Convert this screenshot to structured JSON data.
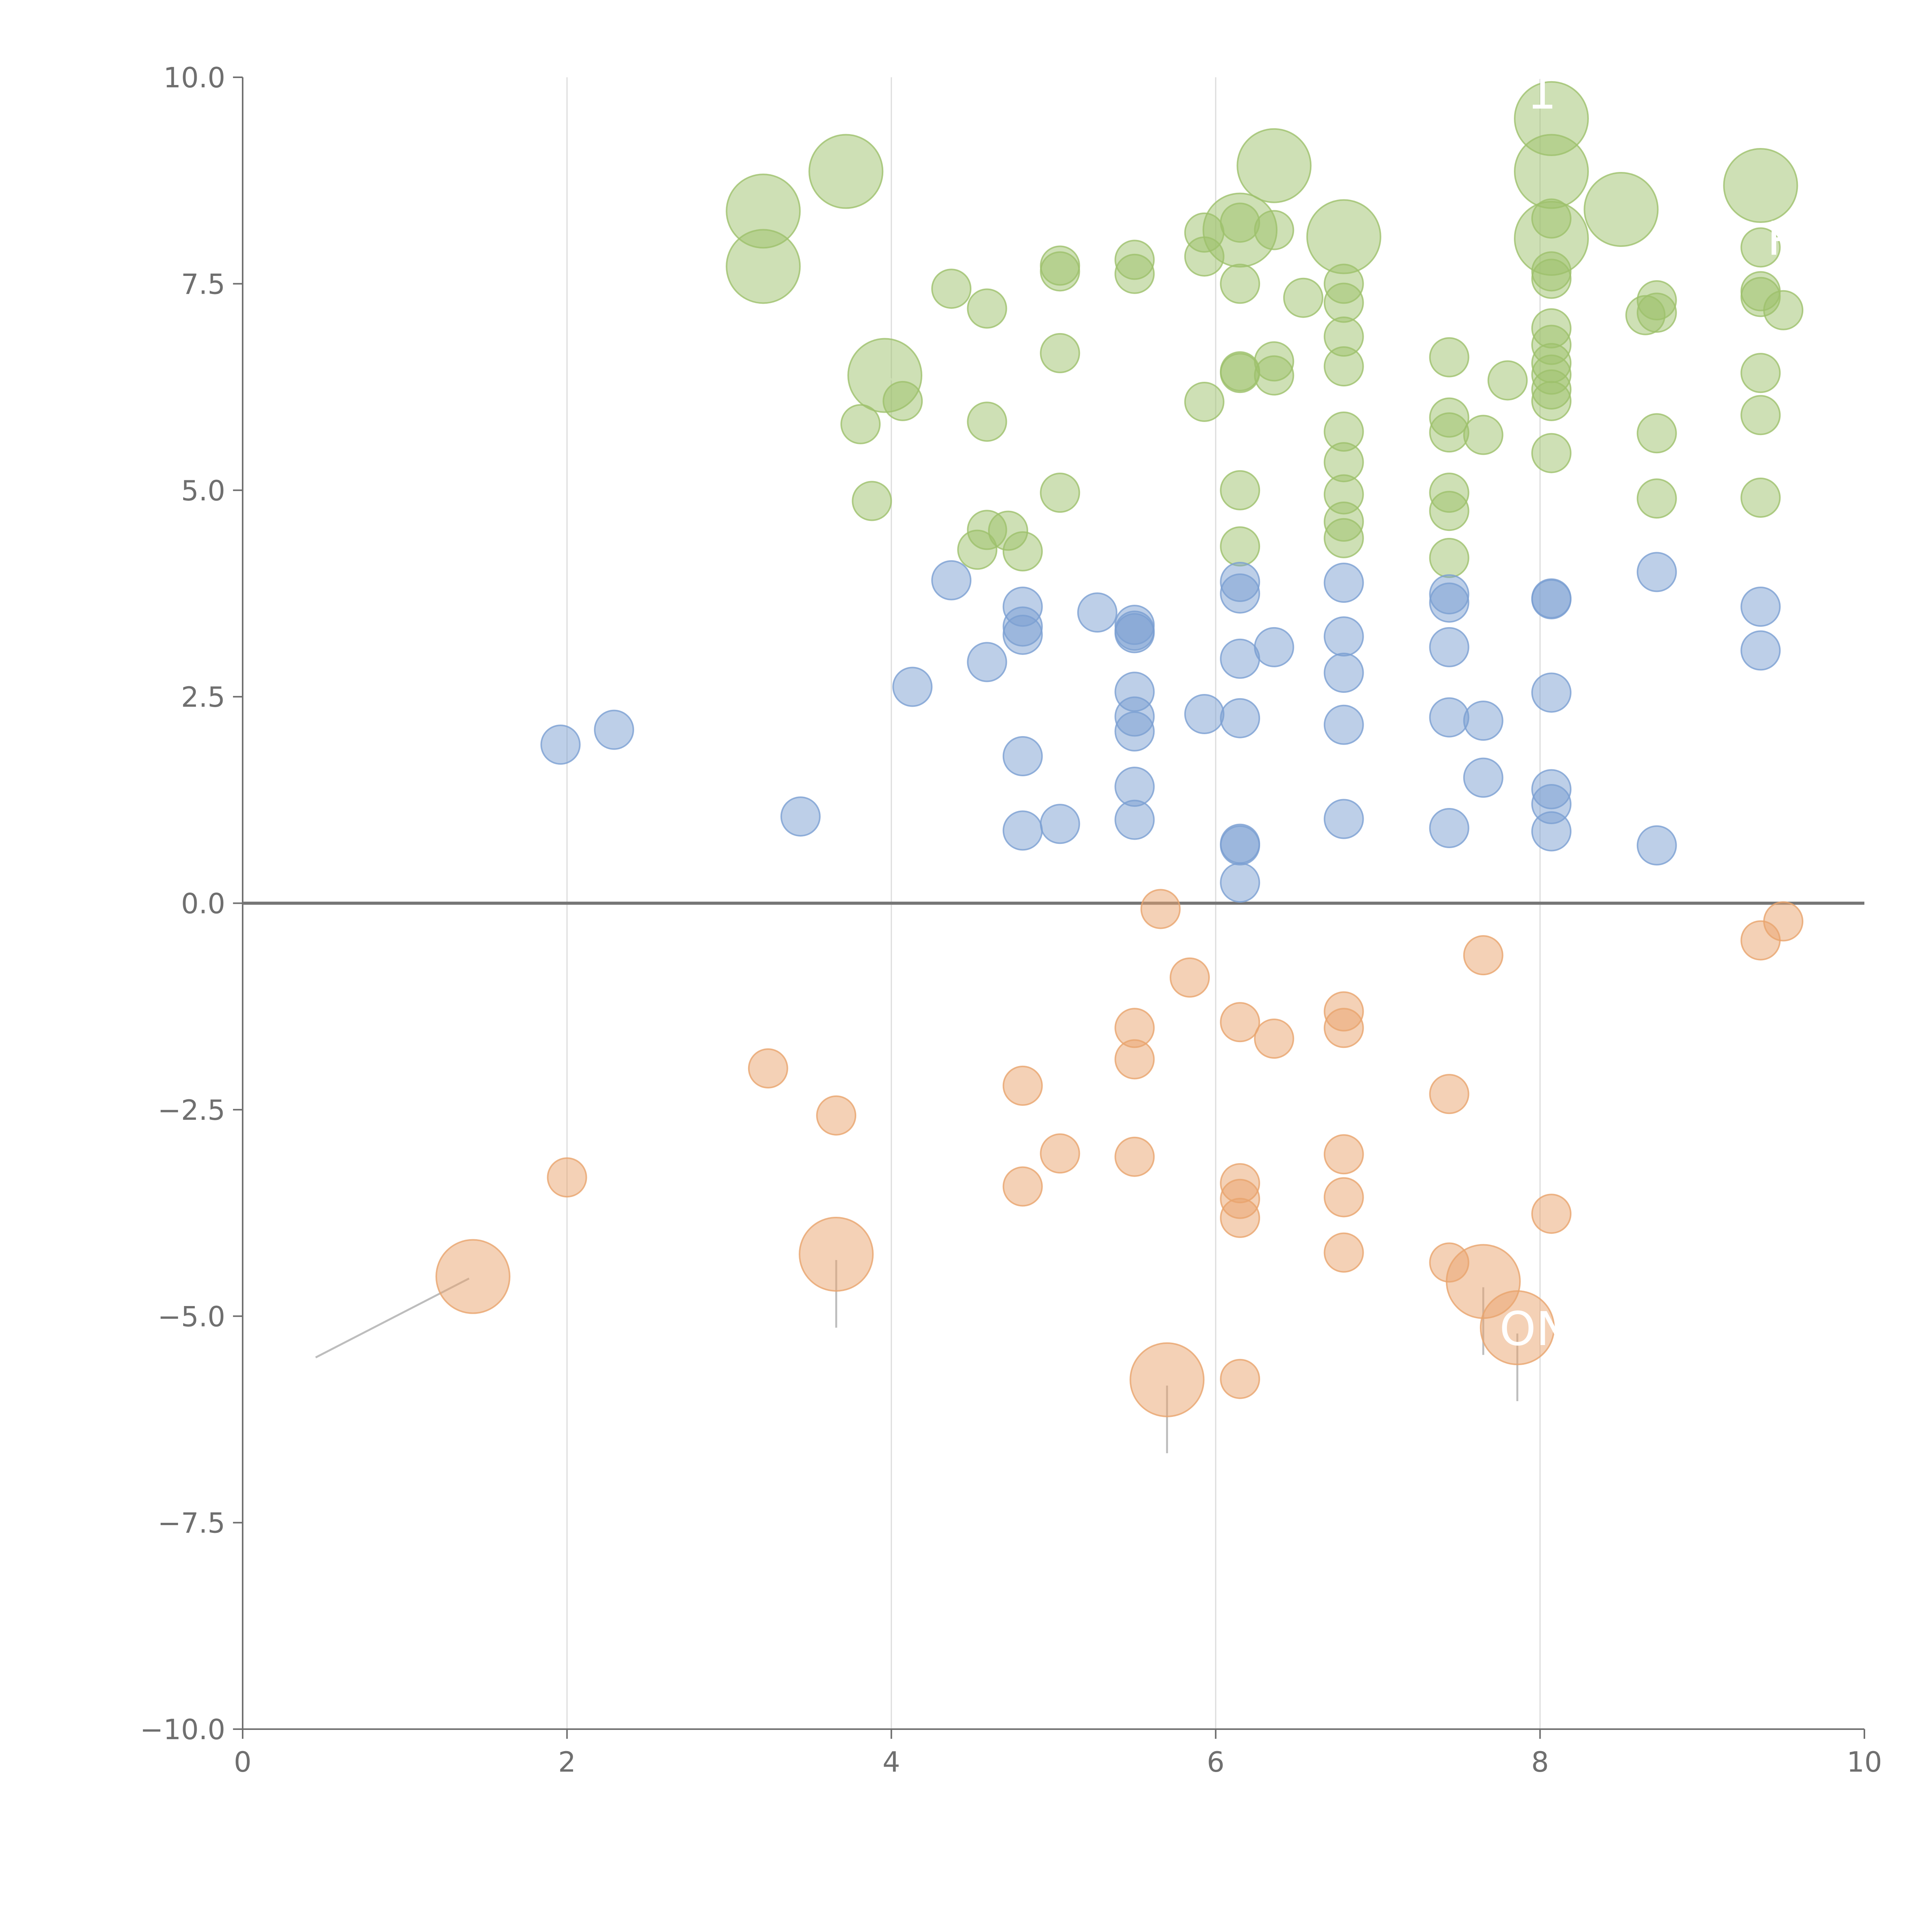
{
  "chart_data": {
    "type": "scatter",
    "title": "",
    "xlabel": "",
    "ylabel": "",
    "xlim": [
      0,
      10
    ],
    "ylim": [
      -10,
      10
    ],
    "x_ticks": [
      "0",
      "2",
      "4",
      "6",
      "8",
      "10"
    ],
    "y_ticks": [
      "10.0",
      "7.5",
      "5.0",
      "2.5",
      "0.0",
      "−2.5",
      "−5.0",
      "−7.5",
      "−10.0"
    ],
    "x_tick_values": [
      0,
      2,
      4,
      6,
      8,
      10
    ],
    "y_tick_values": [
      10,
      7.5,
      5,
      2.5,
      0,
      -2.5,
      -5,
      -7.5,
      -10
    ],
    "x_grid_values": [
      2,
      4,
      6,
      8
    ],
    "zero_line_y": 0,
    "series": [
      {
        "name": "green",
        "color": "#9dc16b",
        "points": [
          [
            4.07,
            6.08
          ],
          [
            3.81,
            5.8
          ],
          [
            3.88,
            4.87
          ],
          [
            4.37,
            7.44
          ],
          [
            4.59,
            7.2
          ],
          [
            4.59,
            5.83
          ],
          [
            4.53,
            4.28
          ],
          [
            4.59,
            4.52
          ],
          [
            4.72,
            4.51
          ],
          [
            4.81,
            4.26
          ],
          [
            5.04,
            7.72
          ],
          [
            5.04,
            7.65
          ],
          [
            5.04,
            6.66
          ],
          [
            5.04,
            4.97
          ],
          [
            5.5,
            7.79
          ],
          [
            5.5,
            7.62
          ],
          [
            5.93,
            8.12
          ],
          [
            5.93,
            7.83
          ],
          [
            5.93,
            6.07
          ],
          [
            6.15,
            8.24
          ],
          [
            6.15,
            7.5
          ],
          [
            6.15,
            6.42
          ],
          [
            6.15,
            6.44
          ],
          [
            6.15,
            5.0
          ],
          [
            6.15,
            4.32
          ],
          [
            6.36,
            8.15
          ],
          [
            6.36,
            6.56
          ],
          [
            6.36,
            6.39
          ],
          [
            6.54,
            7.33
          ],
          [
            6.79,
            7.5
          ],
          [
            6.79,
            7.27
          ],
          [
            6.79,
            6.86
          ],
          [
            6.79,
            6.5
          ],
          [
            6.79,
            5.71
          ],
          [
            6.79,
            5.34
          ],
          [
            6.79,
            4.95
          ],
          [
            6.79,
            4.62
          ],
          [
            6.79,
            4.42
          ],
          [
            7.44,
            6.61
          ],
          [
            7.44,
            5.88
          ],
          [
            7.44,
            5.7
          ],
          [
            7.44,
            4.97
          ],
          [
            7.44,
            4.75
          ],
          [
            7.44,
            4.18
          ],
          [
            7.65,
            5.67
          ],
          [
            7.8,
            6.33
          ],
          [
            8.07,
            8.29
          ],
          [
            8.07,
            7.65
          ],
          [
            8.07,
            7.56
          ],
          [
            8.07,
            6.96
          ],
          [
            8.07,
            6.76
          ],
          [
            8.07,
            6.54
          ],
          [
            8.07,
            6.4
          ],
          [
            8.07,
            6.22
          ],
          [
            8.07,
            6.08
          ],
          [
            8.07,
            5.45
          ],
          [
            8.65,
            7.12
          ],
          [
            8.72,
            7.3
          ],
          [
            8.72,
            7.15
          ],
          [
            8.72,
            5.69
          ],
          [
            8.72,
            4.9
          ],
          [
            9.36,
            7.94
          ],
          [
            9.36,
            7.41
          ],
          [
            9.36,
            7.34
          ],
          [
            9.36,
            6.42
          ],
          [
            9.36,
            5.91
          ],
          [
            9.36,
            4.91
          ],
          [
            9.5,
            7.18
          ]
        ],
        "large_points": [
          [
            3.72,
            8.86
          ],
          [
            3.21,
            8.38
          ],
          [
            3.21,
            7.71
          ],
          [
            3.96,
            6.39
          ],
          [
            6.15,
            8.15
          ],
          [
            6.36,
            8.93
          ],
          [
            6.79,
            8.07
          ],
          [
            8.07,
            9.5
          ],
          [
            8.07,
            8.86
          ],
          [
            8.07,
            8.05
          ],
          [
            8.5,
            8.4
          ],
          [
            9.36,
            8.69
          ]
        ]
      },
      {
        "name": "blue",
        "color": "#7b9fd2",
        "points": [
          [
            1.96,
            1.92
          ],
          [
            2.29,
            2.1
          ],
          [
            3.44,
            1.05
          ],
          [
            4.13,
            2.62
          ],
          [
            4.37,
            3.91
          ],
          [
            4.59,
            2.92
          ],
          [
            4.81,
            3.59
          ],
          [
            4.81,
            3.35
          ],
          [
            4.81,
            3.25
          ],
          [
            4.81,
            1.78
          ],
          [
            4.81,
            0.88
          ],
          [
            5.04,
            0.96
          ],
          [
            5.27,
            3.52
          ],
          [
            5.5,
            3.37
          ],
          [
            5.5,
            3.3
          ],
          [
            5.5,
            3.27
          ],
          [
            5.5,
            2.56
          ],
          [
            5.5,
            2.26
          ],
          [
            5.5,
            2.08
          ],
          [
            5.5,
            1.41
          ],
          [
            5.5,
            1.01
          ],
          [
            5.93,
            2.29
          ],
          [
            6.15,
            3.89
          ],
          [
            6.15,
            3.75
          ],
          [
            6.15,
            2.96
          ],
          [
            6.15,
            2.24
          ],
          [
            6.15,
            0.72
          ],
          [
            6.15,
            0.7
          ],
          [
            6.15,
            0.25
          ],
          [
            6.36,
            3.1
          ],
          [
            6.79,
            3.88
          ],
          [
            6.79,
            3.23
          ],
          [
            6.79,
            2.79
          ],
          [
            6.79,
            2.16
          ],
          [
            6.79,
            1.02
          ],
          [
            7.44,
            3.74
          ],
          [
            7.44,
            3.64
          ],
          [
            7.44,
            3.1
          ],
          [
            7.44,
            2.25
          ],
          [
            7.44,
            0.91
          ],
          [
            7.65,
            2.21
          ],
          [
            7.65,
            1.52
          ],
          [
            8.07,
            3.69
          ],
          [
            8.07,
            3.68
          ],
          [
            8.07,
            2.55
          ],
          [
            8.07,
            1.38
          ],
          [
            8.07,
            1.2
          ],
          [
            8.07,
            0.87
          ],
          [
            8.72,
            4.01
          ],
          [
            8.72,
            0.7
          ],
          [
            9.36,
            3.59
          ],
          [
            9.36,
            3.06
          ]
        ],
        "large_points": []
      },
      {
        "name": "orange",
        "color": "#e9a46d",
        "points": [
          [
            2.0,
            -3.32
          ],
          [
            3.24,
            -2.0
          ],
          [
            3.66,
            -2.57
          ],
          [
            4.81,
            -2.21
          ],
          [
            4.81,
            -3.43
          ],
          [
            5.04,
            -3.03
          ],
          [
            5.5,
            -1.51
          ],
          [
            5.5,
            -1.89
          ],
          [
            5.5,
            -3.07
          ],
          [
            5.66,
            -0.07
          ],
          [
            5.84,
            -0.9
          ],
          [
            6.15,
            -1.44
          ],
          [
            6.15,
            -3.39
          ],
          [
            6.15,
            -3.58
          ],
          [
            6.15,
            -3.81
          ],
          [
            6.15,
            -5.76
          ],
          [
            6.36,
            -1.64
          ],
          [
            6.79,
            -1.31
          ],
          [
            6.79,
            -1.51
          ],
          [
            6.79,
            -3.04
          ],
          [
            6.79,
            -3.56
          ],
          [
            6.79,
            -4.23
          ],
          [
            7.44,
            -2.31
          ],
          [
            7.44,
            -4.35
          ],
          [
            7.65,
            -0.63
          ],
          [
            8.07,
            -3.76
          ],
          [
            9.36,
            -0.45
          ],
          [
            9.5,
            -0.22
          ]
        ],
        "large_points": [
          [
            1.42,
            -4.52
          ],
          [
            3.66,
            -4.25
          ],
          [
            5.7,
            -5.77
          ],
          [
            7.65,
            -4.58
          ],
          [
            7.86,
            -5.14
          ]
        ]
      }
    ],
    "annotations": [
      {
        "text": "ON",
        "x": 7.75,
        "y": -5.35
      },
      {
        "text": "P",
        "x": 9.4,
        "y": 7.85
      },
      {
        "text": "1",
        "x": 7.92,
        "y": 9.62
      }
    ]
  }
}
